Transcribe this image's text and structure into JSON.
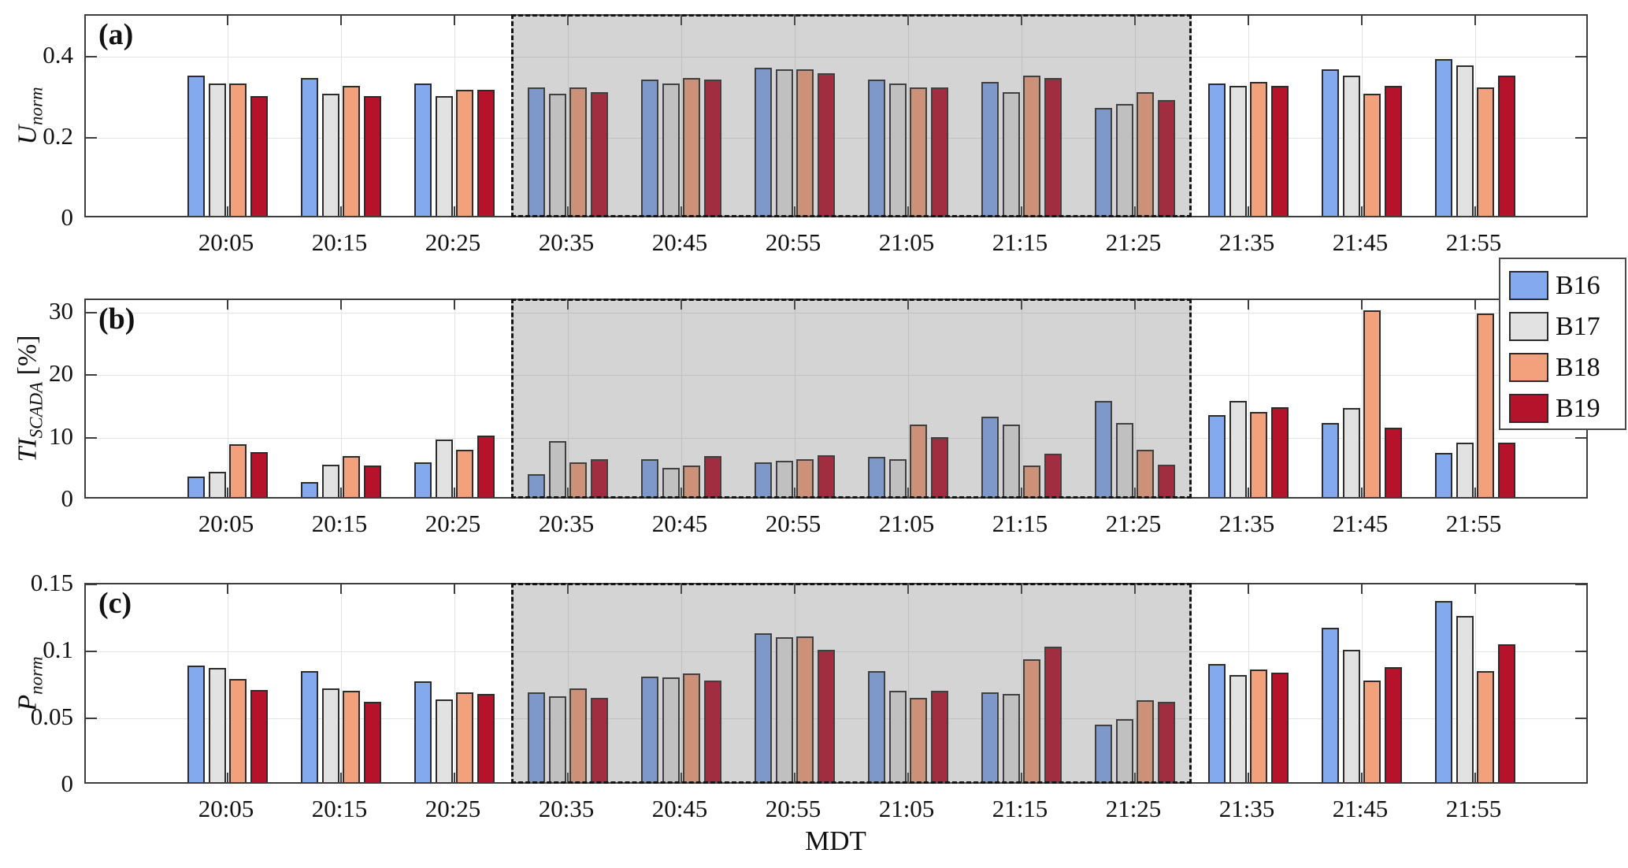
{
  "figure": {
    "xlabel": "MDT",
    "legend": {
      "items": [
        {
          "label": "B16",
          "color": "#85A9EF"
        },
        {
          "label": "B17",
          "color": "#E2E2E2"
        },
        {
          "label": "B18",
          "color": "#F3A17D"
        },
        {
          "label": "B19",
          "color": "#B5122B"
        }
      ]
    },
    "shaded_region": {
      "from_category": "20:35",
      "to_category": "21:25"
    }
  },
  "chart_data": [
    {
      "type": "bar",
      "panel": "a",
      "panel_letter": "(a)",
      "ylabel": {
        "main": "U",
        "sub": "norm",
        "unit": ""
      },
      "ylim": [
        0,
        0.5
      ],
      "yticks": [
        {
          "v": 0,
          "label": "0"
        },
        {
          "v": 0.2,
          "label": "0.2"
        },
        {
          "v": 0.4,
          "label": "0.4"
        }
      ],
      "categories": [
        "20:05",
        "20:15",
        "20:25",
        "20:35",
        "20:45",
        "20:55",
        "21:05",
        "21:15",
        "21:25",
        "21:35",
        "21:45",
        "21:55"
      ],
      "series": [
        {
          "name": "B16",
          "values": [
            0.345,
            0.34,
            0.325,
            0.315,
            0.335,
            0.365,
            0.335,
            0.33,
            0.265,
            0.325,
            0.36,
            0.385
          ]
        },
        {
          "name": "B17",
          "values": [
            0.325,
            0.3,
            0.295,
            0.3,
            0.325,
            0.36,
            0.325,
            0.305,
            0.275,
            0.32,
            0.345,
            0.37
          ]
        },
        {
          "name": "B18",
          "values": [
            0.325,
            0.32,
            0.31,
            0.315,
            0.34,
            0.36,
            0.315,
            0.345,
            0.305,
            0.33,
            0.3,
            0.315
          ]
        },
        {
          "name": "B19",
          "values": [
            0.295,
            0.295,
            0.31,
            0.305,
            0.335,
            0.35,
            0.315,
            0.34,
            0.285,
            0.32,
            0.32,
            0.345
          ]
        }
      ]
    },
    {
      "type": "bar",
      "panel": "b",
      "panel_letter": "(b)",
      "ylabel": {
        "main": "TI",
        "sub": "SCADA",
        "unit": " [%]"
      },
      "ylim": [
        0,
        32
      ],
      "yticks": [
        {
          "v": 0,
          "label": "0"
        },
        {
          "v": 10,
          "label": "10"
        },
        {
          "v": 20,
          "label": "20"
        },
        {
          "v": 30,
          "label": "30"
        }
      ],
      "categories": [
        "20:05",
        "20:15",
        "20:25",
        "20:35",
        "20:45",
        "20:55",
        "21:05",
        "21:15",
        "21:25",
        "21:35",
        "21:45",
        "21:55"
      ],
      "series": [
        {
          "name": "B16",
          "values": [
            3.3,
            2.4,
            5.5,
            3.6,
            6.0,
            5.5,
            6.4,
            12.9,
            15.4,
            13.1,
            11.8,
            7.0
          ]
        },
        {
          "name": "B17",
          "values": [
            4.0,
            5.2,
            9.2,
            8.9,
            4.6,
            5.8,
            6.0,
            11.6,
            11.8,
            15.4,
            14.2,
            8.7
          ]
        },
        {
          "name": "B18",
          "values": [
            8.5,
            6.6,
            7.6,
            5.6,
            5.0,
            6.1,
            11.6,
            5.1,
            7.5,
            13.6,
            29.8,
            29.4
          ]
        },
        {
          "name": "B19",
          "values": [
            7.2,
            5.1,
            9.8,
            6.0,
            6.5,
            6.7,
            9.6,
            6.9,
            5.2,
            14.4,
            11.1,
            8.7
          ]
        }
      ]
    },
    {
      "type": "bar",
      "panel": "c",
      "panel_letter": "(c)",
      "ylabel": {
        "main": "P",
        "sub": "norm",
        "unit": ""
      },
      "ylim": [
        0,
        0.15
      ],
      "yticks": [
        {
          "v": 0,
          "label": "0"
        },
        {
          "v": 0.05,
          "label": "0.05"
        },
        {
          "v": 0.1,
          "label": "0.1"
        },
        {
          "v": 0.15,
          "label": "0.15"
        }
      ],
      "categories": [
        "20:05",
        "20:15",
        "20:25",
        "20:35",
        "20:45",
        "20:55",
        "21:05",
        "21:15",
        "21:25",
        "21:35",
        "21:45",
        "21:55"
      ],
      "series": [
        {
          "name": "B16",
          "values": [
            0.087,
            0.083,
            0.075,
            0.067,
            0.079,
            0.111,
            0.083,
            0.067,
            0.043,
            0.088,
            0.115,
            0.135
          ]
        },
        {
          "name": "B17",
          "values": [
            0.085,
            0.07,
            0.062,
            0.064,
            0.078,
            0.108,
            0.068,
            0.066,
            0.047,
            0.08,
            0.099,
            0.124
          ]
        },
        {
          "name": "B18",
          "values": [
            0.077,
            0.068,
            0.067,
            0.07,
            0.081,
            0.109,
            0.063,
            0.092,
            0.061,
            0.084,
            0.076,
            0.083
          ]
        },
        {
          "name": "B19",
          "values": [
            0.069,
            0.06,
            0.066,
            0.063,
            0.076,
            0.099,
            0.068,
            0.101,
            0.06,
            0.082,
            0.086,
            0.103
          ]
        }
      ]
    }
  ]
}
